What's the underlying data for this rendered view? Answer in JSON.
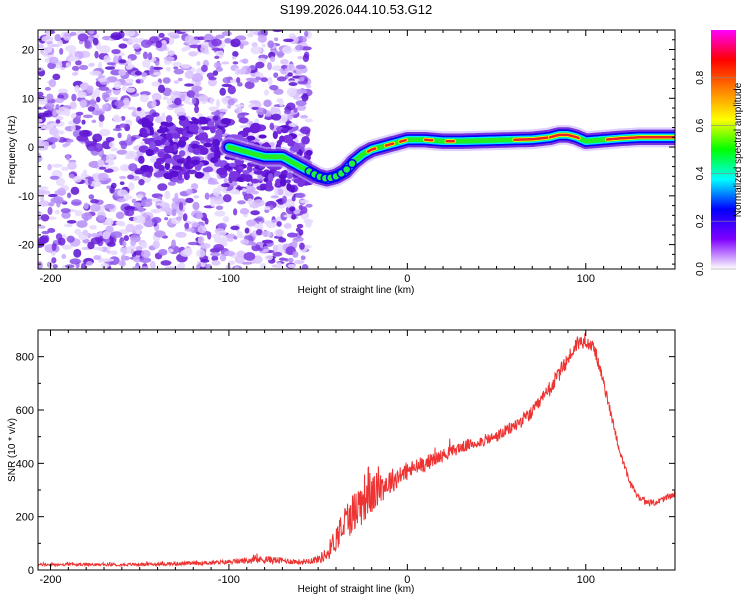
{
  "title": "S199.2026.044.10.53.G12",
  "chart_data": [
    {
      "type": "heatmap",
      "name": "spectrogram",
      "xlabel": "Height of straight line (km)",
      "ylabel": "Frequency (Hz)",
      "xlim": [
        -207,
        150
      ],
      "ylim": [
        -25,
        24
      ],
      "xticks": [
        -200,
        -100,
        0,
        100
      ],
      "xtick_labels": [
        "-200",
        "-100",
        "0",
        "100"
      ],
      "yticks": [
        20,
        10,
        0,
        -10,
        -20
      ],
      "ytick_labels": [
        "20",
        "10",
        "0",
        "-10",
        "-20"
      ],
      "ridge": {
        "x": [
          -100,
          -90,
          -80,
          -70,
          -60,
          -55,
          -50,
          -45,
          -40,
          -35,
          -30,
          -25,
          -20,
          -15,
          -10,
          -5,
          0,
          10,
          20,
          30,
          40,
          50,
          60,
          70,
          80,
          85,
          90,
          95,
          100,
          110,
          120,
          130,
          140,
          150
        ],
        "y": [
          0,
          -1,
          -2,
          -2,
          -4,
          -5,
          -6,
          -6.5,
          -6,
          -5,
          -3,
          -1.5,
          -0.5,
          0,
          0.5,
          1,
          1.5,
          1.5,
          1.2,
          1.2,
          1.3,
          1.4,
          1.5,
          1.6,
          2,
          2.5,
          2.5,
          2,
          1.2,
          1.5,
          1.8,
          2,
          2,
          2
        ]
      },
      "colorbar": {
        "label": "Normalized spectral amplitude",
        "range": [
          0,
          1
        ],
        "ticks": [
          0.0,
          0.2,
          0.4,
          0.6,
          0.8
        ],
        "tick_labels": [
          "0.0",
          "0.2",
          "0.4",
          "0.6",
          "0.8"
        ],
        "colors": [
          "#ffffff",
          "#7f00ff",
          "#0000ff",
          "#00ffff",
          "#00ff00",
          "#ffff00",
          "#ff8000",
          "#ff0000",
          "#ff00ff"
        ]
      }
    },
    {
      "type": "line",
      "name": "snr",
      "xlabel": "Height of straight line (km)",
      "ylabel": "SNR (10 * v/v)",
      "xlim": [
        -207,
        150
      ],
      "ylim": [
        0,
        900
      ],
      "xticks": [
        -200,
        -100,
        0,
        100
      ],
      "xtick_labels": [
        "-200",
        "-100",
        "0",
        "100"
      ],
      "yticks": [
        0,
        200,
        400,
        600,
        800
      ],
      "ytick_labels": [
        "0",
        "200",
        "400",
        "600",
        "800"
      ],
      "color": "#ee3333",
      "x": [
        -207,
        -180,
        -160,
        -140,
        -120,
        -100,
        -90,
        -80,
        -70,
        -60,
        -50,
        -45,
        -40,
        -35,
        -30,
        -25,
        -22,
        -20,
        -15,
        -10,
        -5,
        0,
        10,
        20,
        30,
        40,
        50,
        60,
        70,
        80,
        90,
        95,
        100,
        105,
        110,
        115,
        120,
        125,
        130,
        135,
        140,
        145,
        150
      ],
      "y": [
        20,
        20,
        20,
        22,
        25,
        30,
        35,
        40,
        35,
        30,
        40,
        60,
        120,
        180,
        220,
        260,
        300,
        280,
        310,
        330,
        350,
        370,
        400,
        430,
        460,
        480,
        500,
        540,
        590,
        680,
        790,
        850,
        860,
        830,
        700,
        560,
        420,
        320,
        270,
        250,
        255,
        270,
        285
      ],
      "noise": [
        5,
        5,
        5,
        6,
        7,
        8,
        12,
        15,
        12,
        10,
        15,
        30,
        50,
        70,
        80,
        90,
        100,
        80,
        60,
        50,
        40,
        35,
        30,
        25,
        22,
        22,
        22,
        25,
        25,
        30,
        30,
        30,
        25,
        25,
        20,
        18,
        15,
        15,
        12,
        12,
        12,
        12,
        12
      ]
    }
  ]
}
